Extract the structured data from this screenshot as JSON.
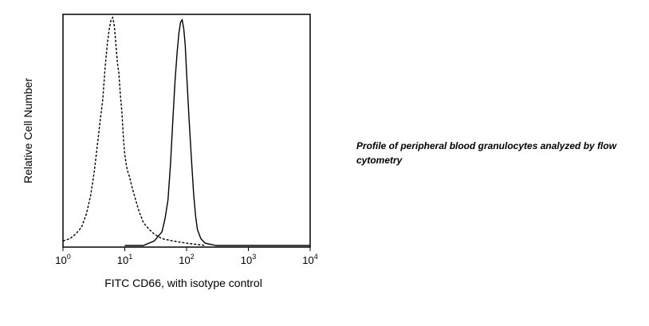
{
  "chart_data": {
    "type": "line",
    "title": "",
    "xlabel": "FITC CD66, with isotype control",
    "ylabel": "Relative Cell Number",
    "x_scale": "log",
    "xlim": [
      1,
      10000
    ],
    "ylim": [
      0,
      1
    ],
    "x_ticks": [
      {
        "base": "10",
        "exp": "0",
        "value": 1
      },
      {
        "base": "10",
        "exp": "1",
        "value": 10
      },
      {
        "base": "10",
        "exp": "2",
        "value": 100
      },
      {
        "base": "10",
        "exp": "3",
        "value": 1000
      },
      {
        "base": "10",
        "exp": "4",
        "value": 10000
      }
    ],
    "grid": false,
    "series": [
      {
        "style": "dashed",
        "color": "#000000",
        "x": [
          1.0,
          1.3,
          1.6,
          2.0,
          2.4,
          2.8,
          3.2,
          3.6,
          4.0,
          4.4,
          4.8,
          5.2,
          5.6,
          6.0,
          6.4,
          6.8,
          7.2,
          7.6,
          8.0,
          8.5,
          9.0,
          9.5,
          10.0,
          10.5,
          11.0,
          12.0,
          13.0,
          15.0,
          17.0,
          20.0,
          25.0,
          30.0,
          40.0,
          60.0,
          100.0,
          200.0
        ],
        "y": [
          0.02,
          0.03,
          0.05,
          0.08,
          0.14,
          0.22,
          0.32,
          0.44,
          0.55,
          0.64,
          0.78,
          0.88,
          0.95,
          0.99,
          1.0,
          0.96,
          0.88,
          0.8,
          0.76,
          0.66,
          0.58,
          0.47,
          0.4,
          0.36,
          0.33,
          0.3,
          0.26,
          0.2,
          0.15,
          0.1,
          0.07,
          0.05,
          0.03,
          0.02,
          0.01,
          0.0
        ]
      },
      {
        "style": "solid",
        "color": "#000000",
        "x": [
          10.0,
          20.0,
          30.0,
          40.0,
          45.0,
          50.0,
          55.0,
          60.0,
          65.0,
          70.0,
          75.0,
          80.0,
          85.0,
          90.0,
          95.0,
          100.0,
          110.0,
          120.0,
          130.0,
          140.0,
          150.0,
          170.0,
          200.0,
          300.0,
          1000.0,
          10000.0
        ],
        "y": [
          0.0,
          0.0,
          0.02,
          0.06,
          0.12,
          0.2,
          0.36,
          0.55,
          0.72,
          0.84,
          0.93,
          0.98,
          0.99,
          0.95,
          0.88,
          0.76,
          0.55,
          0.38,
          0.23,
          0.13,
          0.07,
          0.03,
          0.01,
          0.0,
          0.0,
          0.0
        ]
      }
    ]
  },
  "caption": "Profile of peripheral blood granulocytes analyzed by flow cytometry"
}
